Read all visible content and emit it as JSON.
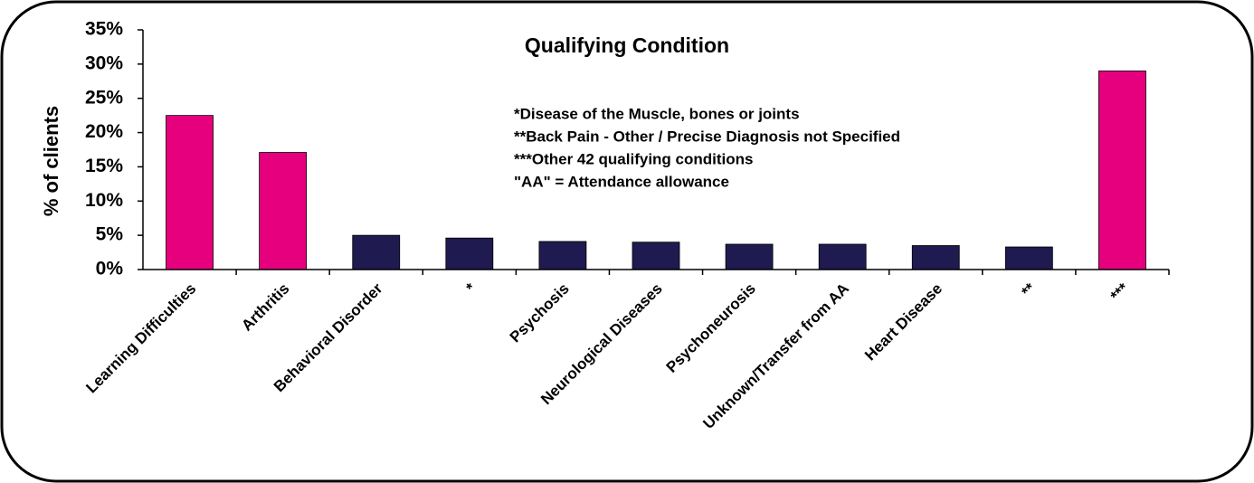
{
  "chart_data": {
    "type": "bar",
    "title": "Qualifying Condition",
    "y_axis_label": "% of clients",
    "annotations": [
      "*Disease of the Muscle, bones or joints",
      "**Back Pain - Other / Precise Diagnosis not Specified",
      "***Other 42 qualifying conditions",
      "\"AA\" = Attendance allowance"
    ],
    "categories": [
      "Learning Difficulties",
      "Arthritis",
      "Behavioral Disorder",
      "*",
      "Psychosis",
      "Neurological Diseases",
      "Psychoneurosis",
      "Unknown/Transfer from AA",
      "Heart Disease",
      "**",
      "***"
    ],
    "values": [
      22.5,
      17.1,
      5.0,
      4.6,
      4.1,
      4.0,
      3.7,
      3.7,
      3.5,
      3.3,
      29.0
    ],
    "colors": [
      "#e6007e",
      "#e6007e",
      "#1f1a4f",
      "#1f1a4f",
      "#1f1a4f",
      "#1f1a4f",
      "#1f1a4f",
      "#1f1a4f",
      "#1f1a4f",
      "#1f1a4f",
      "#e6007e"
    ],
    "ylim": [
      0,
      35
    ],
    "yticks": [
      {
        "value": 0,
        "label": "0%"
      },
      {
        "value": 5,
        "label": "5%"
      },
      {
        "value": 10,
        "label": "10%"
      },
      {
        "value": 15,
        "label": "15%"
      },
      {
        "value": 20,
        "label": "20%"
      },
      {
        "value": 25,
        "label": "25%"
      },
      {
        "value": 30,
        "label": "30%"
      },
      {
        "value": 35,
        "label": "35%"
      }
    ],
    "grid": false
  }
}
